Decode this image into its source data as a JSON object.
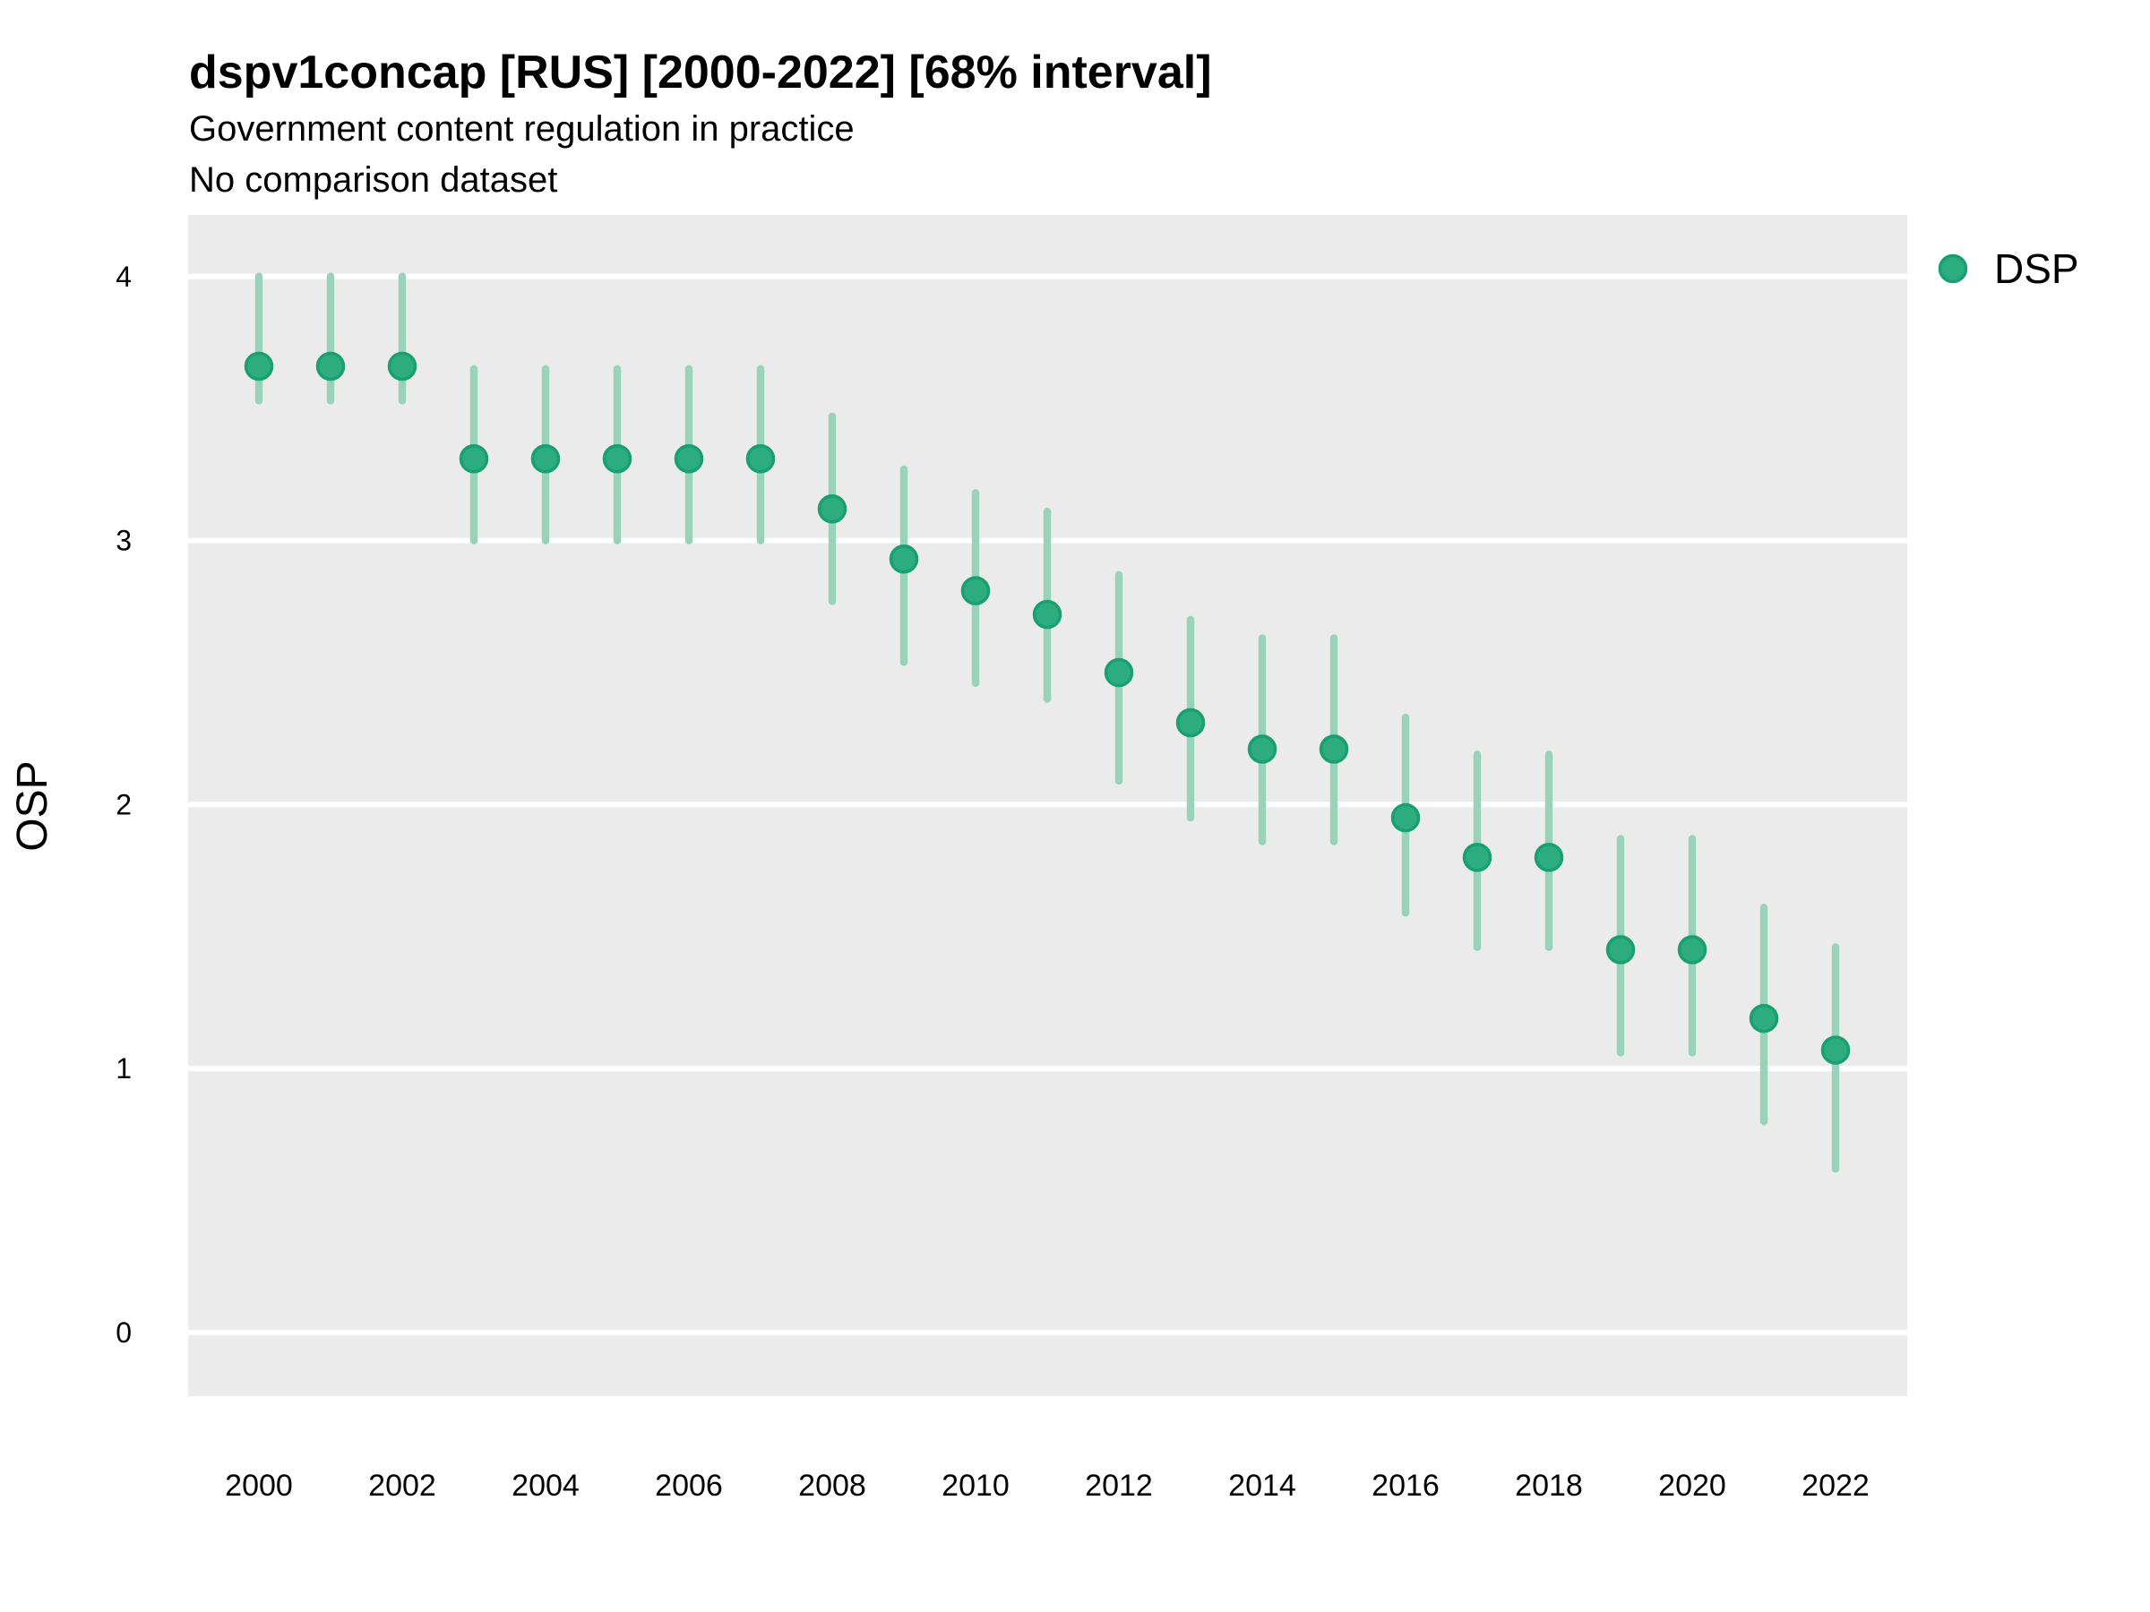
{
  "header": {
    "title": "dspv1concap [RUS] [2000-2022] [68% interval]",
    "subtitle_line1": "Government content regulation in practice",
    "subtitle_line2": "No comparison dataset"
  },
  "legend": {
    "position": "right",
    "entries": [
      {
        "label": "DSP",
        "color": "#2DAC80"
      }
    ]
  },
  "axes": {
    "y_title": "OSP",
    "y_tick_labels": [
      "0",
      "1",
      "2",
      "3",
      "4"
    ],
    "x_tick_labels": [
      "2000",
      "2002",
      "2004",
      "2006",
      "2008",
      "2010",
      "2012",
      "2014",
      "2016",
      "2018",
      "2020",
      "2022"
    ]
  },
  "colors": {
    "point_fill": "#2DAC80",
    "point_stroke": "#189F72",
    "interval_bar": "#96D3B8",
    "panel_background": "#EBEBEB",
    "gridline": "#FFFFFF",
    "text": "#000000"
  },
  "chart_data": {
    "type": "scatter",
    "subtype": "pointrange",
    "title": "dspv1concap [RUS] [2000-2022] [68% interval]",
    "subtitle": [
      "Government content regulation in practice",
      "No comparison dataset"
    ],
    "country": "RUS",
    "interval_label": "68% interval",
    "xlabel": "",
    "ylabel": "OSP",
    "grid": "horizontal-major-only",
    "panel_background": "#EBEBEB",
    "legend_position": "right",
    "ylim": [
      -0.24,
      4.23
    ],
    "y_ticks": [
      0,
      1,
      2,
      3,
      4
    ],
    "x_ticks": [
      2000,
      2002,
      2004,
      2006,
      2008,
      2010,
      2012,
      2014,
      2016,
      2018,
      2020,
      2022
    ],
    "x": [
      2000,
      2001,
      2002,
      2003,
      2004,
      2005,
      2006,
      2007,
      2008,
      2009,
      2010,
      2011,
      2012,
      2013,
      2014,
      2015,
      2016,
      2017,
      2018,
      2019,
      2020,
      2021,
      2022
    ],
    "series": [
      {
        "name": "DSP",
        "color": "#2DAC80",
        "estimate": [
          3.66,
          3.66,
          3.66,
          3.31,
          3.31,
          3.31,
          3.31,
          3.31,
          3.12,
          2.93,
          2.81,
          2.72,
          2.5,
          2.31,
          2.21,
          2.21,
          1.95,
          1.8,
          1.8,
          1.45,
          1.45,
          1.19,
          1.07
        ],
        "lower": [
          3.53,
          3.53,
          3.53,
          3.0,
          3.0,
          3.0,
          3.0,
          3.0,
          2.77,
          2.54,
          2.46,
          2.4,
          2.09,
          1.95,
          1.86,
          1.86,
          1.59,
          1.46,
          1.46,
          1.06,
          1.06,
          0.8,
          0.62
        ],
        "upper": [
          4.0,
          4.0,
          4.0,
          3.65,
          3.65,
          3.65,
          3.65,
          3.65,
          3.47,
          3.27,
          3.18,
          3.11,
          2.87,
          2.7,
          2.63,
          2.63,
          2.33,
          2.19,
          2.19,
          1.87,
          1.87,
          1.61,
          1.46
        ]
      }
    ]
  }
}
